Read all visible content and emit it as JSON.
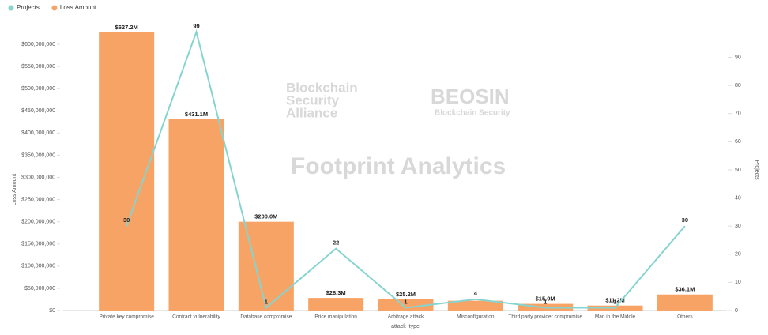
{
  "chart_data": {
    "type": "bar-line",
    "x_label": "attack_type",
    "y_label": "Loss Amount",
    "y2_label": "Projects",
    "watermarks": [
      "Blockchain",
      "Security",
      "Alliance",
      "BEOSIN",
      "Blockchain Security",
      "Footprint Analytics"
    ],
    "categories": [
      "Private key compromise",
      "Contract vulnerability",
      "Database compromise",
      "Price manipulation",
      "Arbitrage attack",
      "Misconfiguration",
      "Third party provider compromise",
      "Man in the Middle",
      "Others"
    ],
    "series": [
      {
        "name": "Projects",
        "type": "line",
        "axis": "y2",
        "color": "#86d4d0",
        "values": [
          30,
          99,
          1,
          22,
          1,
          4,
          1,
          1,
          30
        ]
      },
      {
        "name": "Loss Amount",
        "type": "bar",
        "color": "#f7a365",
        "values": [
          627200000,
          431100000,
          200000000,
          28300000,
          25200000,
          22000000,
          15000000,
          11200000,
          36100000
        ],
        "value_labels": [
          "$627.2M",
          "$431.1M",
          "$200.0M",
          "$28.3M",
          "$25.2M",
          null,
          "$15.0M",
          "$11.2M",
          "$36.1M"
        ]
      }
    ],
    "ylim": [
      0,
      650000000
    ],
    "yticks": [
      {
        "value": 0,
        "label": "$0"
      },
      {
        "value": 50000000,
        "label": "$50,000,000"
      },
      {
        "value": 100000000,
        "label": "$100,000,000"
      },
      {
        "value": 150000000,
        "label": "$150,000,000"
      },
      {
        "value": 200000000,
        "label": "$200,000,000"
      },
      {
        "value": 250000000,
        "label": "$250,000,000"
      },
      {
        "value": 300000000,
        "label": "$300,000,000"
      },
      {
        "value": 350000000,
        "label": "$350,000,000"
      },
      {
        "value": 400000000,
        "label": "$400,000,000"
      },
      {
        "value": 450000000,
        "label": "$450,000,000"
      },
      {
        "value": 500000000,
        "label": "$500,000,000"
      },
      {
        "value": 550000000,
        "label": "$550,000,000"
      },
      {
        "value": 600000000,
        "label": "$600,000,000"
      }
    ],
    "y2lim": [
      0,
      102.5
    ],
    "y2ticks": [
      0,
      10,
      20,
      30,
      40,
      50,
      60,
      70,
      80,
      90
    ],
    "legend": "top-left"
  }
}
